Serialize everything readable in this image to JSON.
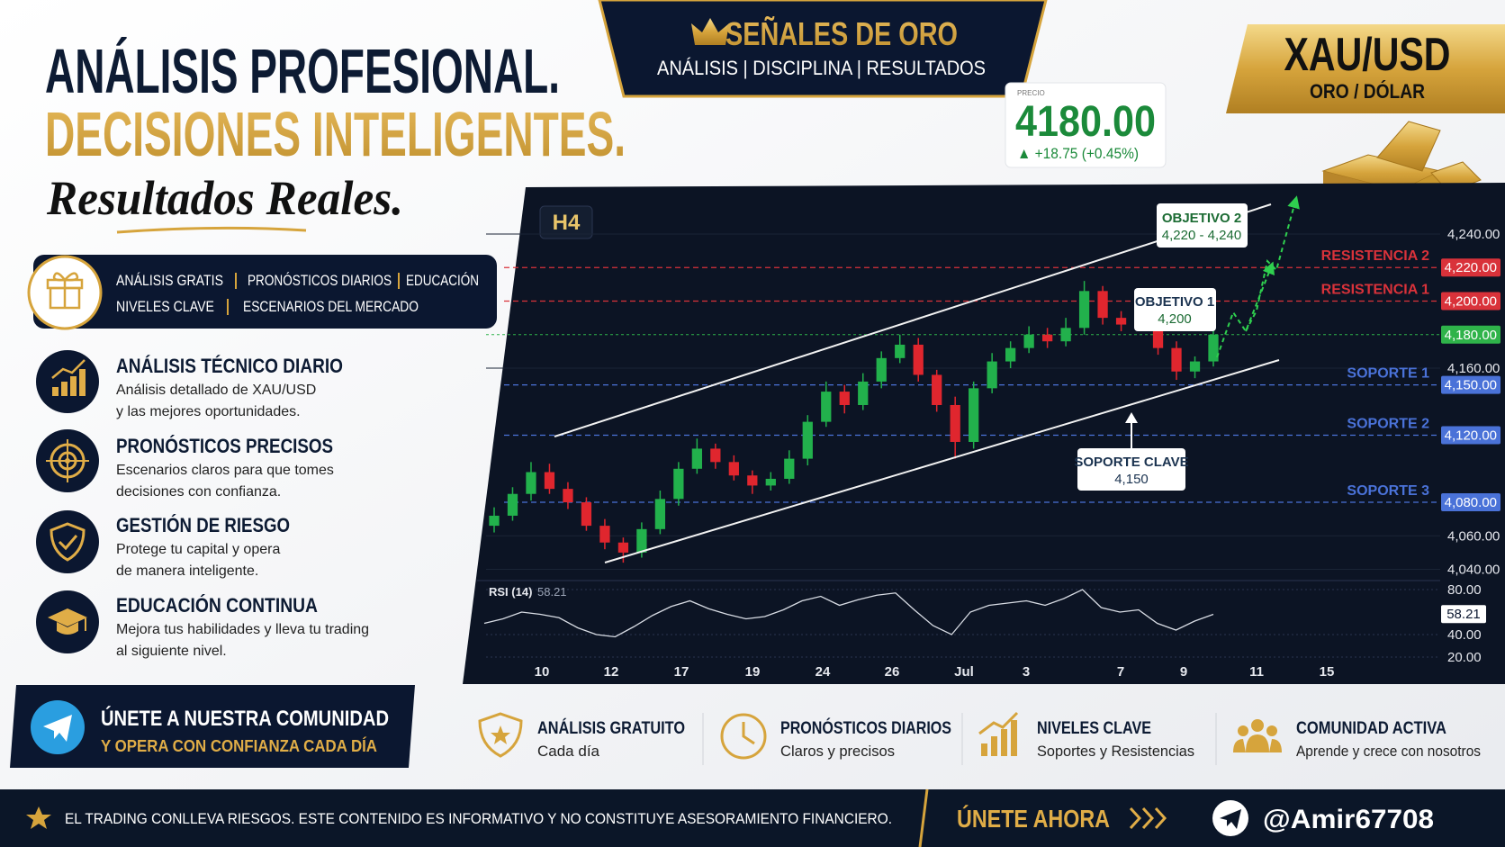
{
  "header": {
    "title_line1": "ANÁLISIS PROFESIONAL.",
    "title_line2": "DECISIONES INTELIGENTES.",
    "script_line": "Resultados Reales."
  },
  "banner": {
    "title": "SEÑALES DE ORO",
    "subtitle": "ANÁLISIS | DISCIPLINA | RESULTADOS"
  },
  "pair": {
    "symbol": "XAU/USD",
    "name": "ORO / DÓLAR"
  },
  "price": {
    "label": "PRECIO",
    "value": "4180.00",
    "change": "▲ +18.75 (+0.45%)"
  },
  "offers": [
    "ANÁLISIS GRATIS",
    "PRONÓSTICOS DIARIOS",
    "EDUCACIÓN",
    "NIVELES CLAVE",
    "ESCENARIOS DEL MERCADO"
  ],
  "features": [
    {
      "title": "ANÁLISIS TÉCNICO DIARIO",
      "lines": [
        "Análisis detallado de XAU/USD",
        "y las mejores oportunidades."
      ]
    },
    {
      "title": "PRONÓSTICOS PRECISOS",
      "lines": [
        "Escenarios claros para que tomes",
        "decisiones con confianza."
      ]
    },
    {
      "title": "GESTIÓN DE RIESGO",
      "lines": [
        "Protege tu capital y opera",
        "de manera inteligente."
      ]
    },
    {
      "title": "EDUCACIÓN CONTINUA",
      "lines": [
        "Mejora tus habilidades y lleva tu trading",
        "al siguiente nivel."
      ]
    }
  ],
  "join": {
    "title": "ÚNETE A NUESTRA COMUNIDAD",
    "subtitle": "Y OPERA CON CONFIANZA CADA DÍA"
  },
  "benefits": [
    {
      "title": "ANÁLISIS GRATUITO",
      "text": "Cada día"
    },
    {
      "title": "PRONÓSTICOS DIARIOS",
      "text": "Claros y precisos"
    },
    {
      "title": "NIVELES CLAVE",
      "text": "Soportes y Resistencias"
    },
    {
      "title": "COMUNIDAD ACTIVA",
      "text": "Aprende y crece con nosotros"
    }
  ],
  "footer": {
    "disclaimer": "EL TRADING CONLLEVA RIESGOS. ESTE CONTENIDO ES INFORMATIVO Y NO CONSTITUYE ASESORAMIENTO FINANCIERO.",
    "cta": "ÚNETE AHORA",
    "handle": "@Amir67708"
  },
  "chart_data": {
    "type": "candlestick",
    "timeframe": "H4",
    "up_color": "#22b14c",
    "down_color": "#e0262e",
    "ohlc": {
      "open": [
        4066,
        4072,
        4085,
        4098,
        4088,
        4080,
        4066,
        4056,
        4050,
        4064,
        4082,
        4100,
        4112,
        4104,
        4096,
        4090,
        4094,
        4106,
        4128,
        4146,
        4138,
        4152,
        4166,
        4174,
        4156,
        4138,
        4116,
        4148,
        4164,
        4172,
        4180,
        4176,
        4184,
        4206,
        4190,
        4186,
        4188,
        4172,
        4158,
        4164
      ],
      "high": [
        4077,
        4089,
        4104,
        4103,
        4092,
        4083,
        4070,
        4059,
        4068,
        4087,
        4104,
        4118,
        4115,
        4108,
        4099,
        4098,
        4111,
        4132,
        4152,
        4150,
        4157,
        4170,
        4180,
        4178,
        4159,
        4143,
        4152,
        4169,
        4176,
        4185,
        4184,
        4190,
        4212,
        4209,
        4194,
        4193,
        4191,
        4176,
        4167,
        4184
      ],
      "low": [
        4062,
        4069,
        4081,
        4085,
        4076,
        4063,
        4052,
        4044,
        4047,
        4061,
        4078,
        4097,
        4100,
        4093,
        4085,
        4087,
        4091,
        4102,
        4125,
        4133,
        4135,
        4148,
        4163,
        4152,
        4134,
        4106,
        4112,
        4145,
        4160,
        4169,
        4172,
        4173,
        4180,
        4186,
        4182,
        4183,
        4168,
        4153,
        4154,
        4161
      ],
      "close": [
        4072,
        4085,
        4098,
        4088,
        4080,
        4066,
        4056,
        4050,
        4064,
        4082,
        4100,
        4112,
        4104,
        4096,
        4090,
        4094,
        4106,
        4128,
        4146,
        4138,
        4152,
        4166,
        4174,
        4156,
        4138,
        4116,
        4148,
        4164,
        4172,
        4180,
        4176,
        4184,
        4206,
        4190,
        4186,
        4188,
        4172,
        4158,
        4164,
        4180
      ]
    },
    "ylim": [
      4036,
      4262
    ],
    "yticks": [
      {
        "value": 4040,
        "label": "4,040.00"
      },
      {
        "value": 4060,
        "label": "4,060.00"
      },
      {
        "value": 4160,
        "label": "4,160.00"
      },
      {
        "value": 4240,
        "label": "4,240.00"
      }
    ],
    "levels": [
      {
        "name": "RESISTENCIA 2",
        "value": 4220,
        "label": "4,220.00",
        "color": "#d9323a"
      },
      {
        "name": "RESISTENCIA 1",
        "value": 4200,
        "label": "4,200.00",
        "color": "#d9323a"
      },
      {
        "name": "SOPORTE 1",
        "value": 4150,
        "label": "4,150.00",
        "color": "#4a72d8"
      },
      {
        "name": "SOPORTE 2",
        "value": 4120,
        "label": "4,120.00",
        "color": "#4a72d8"
      },
      {
        "name": "SOPORTE 3",
        "value": 4080,
        "label": "4,080.00",
        "color": "#4a72d8"
      }
    ],
    "current_price": {
      "value": 4180,
      "label": "4,180.00",
      "color": "#2fb34a"
    },
    "annotations": [
      {
        "title": "OBJETIVO 2",
        "text": "4,220 - 4,240"
      },
      {
        "title": "OBJETIVO 1",
        "text": "4,200"
      },
      {
        "title": "SOPORTE CLAVE",
        "text": "4,150"
      }
    ],
    "xticks": [
      "10",
      "12",
      "17",
      "19",
      "24",
      "26",
      "Jul",
      "3",
      "7",
      "9",
      "11",
      "15"
    ],
    "rsi": {
      "label": "RSI (14)",
      "value": 58.21,
      "color": "#d8dce4",
      "values": [
        50,
        54,
        60,
        58,
        55,
        46,
        40,
        38,
        47,
        57,
        65,
        70,
        63,
        58,
        54,
        56,
        62,
        70,
        74,
        66,
        71,
        75,
        77,
        62,
        48,
        40,
        60,
        66,
        68,
        70,
        66,
        72,
        80,
        64,
        60,
        62,
        50,
        44,
        52,
        58
      ],
      "ylim": [
        17,
        90
      ],
      "yticks": [
        {
          "value": 20,
          "label": "20.00"
        },
        {
          "value": 40,
          "label": "40.00"
        },
        {
          "value": 80,
          "label": "80.00"
        }
      ]
    }
  }
}
